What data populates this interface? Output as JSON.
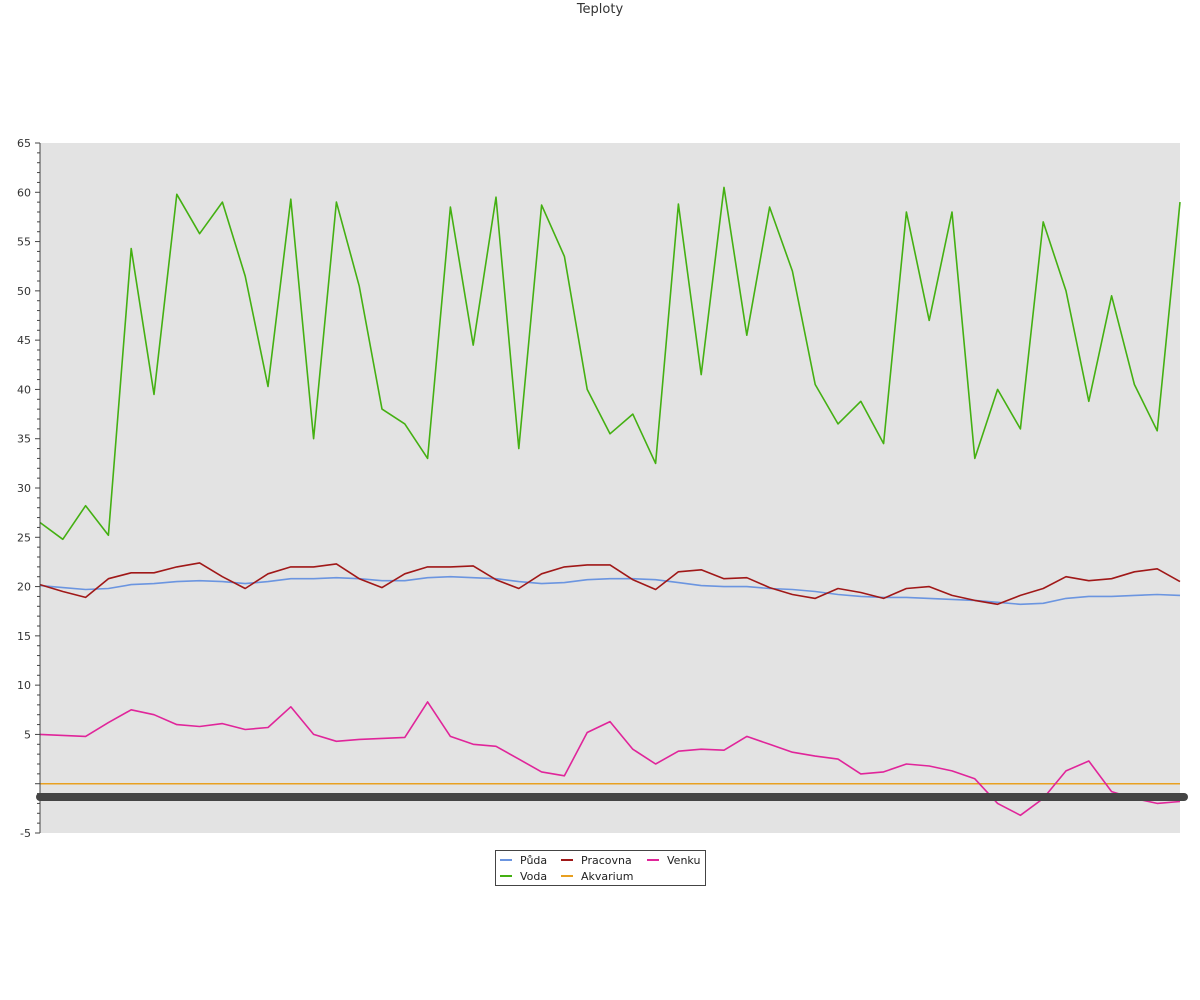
{
  "chart_data": {
    "type": "line",
    "title": "Teploty",
    "xlabel": "",
    "ylabel": "",
    "ylim": [
      -5,
      65
    ],
    "yticks": [
      -5,
      5,
      10,
      15,
      20,
      25,
      30,
      35,
      40,
      45,
      50,
      55,
      60,
      65
    ],
    "grid": false,
    "legend_position": "bottom",
    "x": [
      0,
      0.02,
      0.04,
      0.06,
      0.08,
      0.1,
      0.12,
      0.14,
      0.16,
      0.18,
      0.2,
      0.22,
      0.24,
      0.26,
      0.28,
      0.3,
      0.32,
      0.34,
      0.36,
      0.38,
      0.4,
      0.42,
      0.44,
      0.46,
      0.48,
      0.5,
      0.52,
      0.54,
      0.56,
      0.58,
      0.6,
      0.62,
      0.64,
      0.66,
      0.68,
      0.7,
      0.72,
      0.74,
      0.76,
      0.78,
      0.8,
      0.82,
      0.84,
      0.86,
      0.88,
      0.9,
      0.92,
      0.94,
      0.96,
      0.98,
      1.0
    ],
    "series": [
      {
        "name": "Půda",
        "color": "#6b95e0",
        "values": [
          20.1,
          19.9,
          19.7,
          19.8,
          20.2,
          20.3,
          20.5,
          20.6,
          20.5,
          20.3,
          20.5,
          20.8,
          20.8,
          20.9,
          20.8,
          20.6,
          20.6,
          20.9,
          21.0,
          20.9,
          20.8,
          20.5,
          20.3,
          20.4,
          20.7,
          20.8,
          20.8,
          20.7,
          20.4,
          20.1,
          20.0,
          20.0,
          19.8,
          19.7,
          19.5,
          19.2,
          19.0,
          18.9,
          18.9,
          18.8,
          18.7,
          18.6,
          18.4,
          18.2,
          18.3,
          18.8,
          19.0,
          19.0,
          19.1,
          19.2,
          19.1
        ]
      },
      {
        "name": "Pracovna",
        "color": "#a01818",
        "values": [
          20.2,
          19.5,
          18.9,
          20.8,
          21.4,
          21.4,
          22.0,
          22.4,
          21.0,
          19.8,
          21.3,
          22.0,
          22.0,
          22.3,
          20.8,
          19.9,
          21.3,
          22.0,
          22.0,
          22.1,
          20.7,
          19.8,
          21.3,
          22.0,
          22.2,
          22.2,
          20.7,
          19.7,
          21.5,
          21.7,
          20.8,
          20.9,
          19.9,
          19.2,
          18.8,
          19.8,
          19.4,
          18.8,
          19.8,
          20.0,
          19.1,
          18.6,
          18.2,
          19.1,
          19.8,
          21.0,
          20.6,
          20.8,
          21.5,
          21.8,
          20.5
        ]
      },
      {
        "name": "Venku",
        "color": "#e0259a",
        "values": [
          5.0,
          4.9,
          4.8,
          6.2,
          7.5,
          7.0,
          6.0,
          5.8,
          6.1,
          5.5,
          5.7,
          7.8,
          5.0,
          4.3,
          4.5,
          4.6,
          4.7,
          8.3,
          4.8,
          4.0,
          3.8,
          2.5,
          1.2,
          0.8,
          5.2,
          6.3,
          3.5,
          2.0,
          3.3,
          3.5,
          3.4,
          4.8,
          4.0,
          3.2,
          2.8,
          2.5,
          1.0,
          1.2,
          2.0,
          1.8,
          1.3,
          0.5,
          -2.0,
          -3.2,
          -1.5,
          1.3,
          2.3,
          -0.8,
          -1.5,
          -2.0,
          -1.8
        ]
      },
      {
        "name": "Voda",
        "color": "#44b012",
        "values": [
          26.5,
          24.8,
          28.2,
          25.2,
          54.3,
          39.5,
          59.8,
          55.8,
          59.0,
          51.5,
          40.3,
          59.3,
          35.0,
          59.0,
          50.5,
          38.0,
          36.5,
          33.0,
          58.5,
          44.5,
          59.5,
          34.0,
          58.7,
          53.5,
          40.0,
          35.5,
          37.5,
          32.5,
          58.8,
          41.5,
          60.5,
          45.5,
          58.5,
          52.0,
          40.5,
          36.5,
          38.8,
          34.5,
          58.0,
          47.0,
          58.0,
          33.0,
          40.0,
          36.0,
          57.0,
          50.0,
          38.8,
          49.5,
          40.5,
          35.8,
          59.0
        ]
      },
      {
        "name": "Akvarium",
        "color": "#e8a020",
        "values": [
          0.0,
          0.0,
          0.0,
          0.0,
          0.0,
          0.0,
          0.0,
          0.0,
          0.0,
          0.0,
          0.0,
          0.0,
          0.0,
          0.0,
          0.0,
          0.0,
          0.0,
          0.0,
          0.0,
          0.0,
          0.0,
          0.0,
          0.0,
          0.0,
          0.0,
          0.0,
          0.0,
          0.0,
          0.0,
          0.0,
          0.0,
          0.0,
          0.0,
          0.0,
          0.0,
          0.0,
          0.0,
          0.0,
          0.0,
          0.0,
          0.0,
          0.0,
          0.0,
          0.0,
          0.0,
          0.0,
          0.0,
          0.0,
          0.0,
          0.0,
          0.0
        ]
      }
    ]
  },
  "legend": {
    "puda": "Půda",
    "voda": "Voda",
    "pracovna": "Pracovna",
    "akvarium": "Akvarium",
    "venku": "Venku"
  },
  "colors": {
    "plot_background": "#e3e3e3",
    "axis": "#444444",
    "overlap_band": "#444444"
  }
}
